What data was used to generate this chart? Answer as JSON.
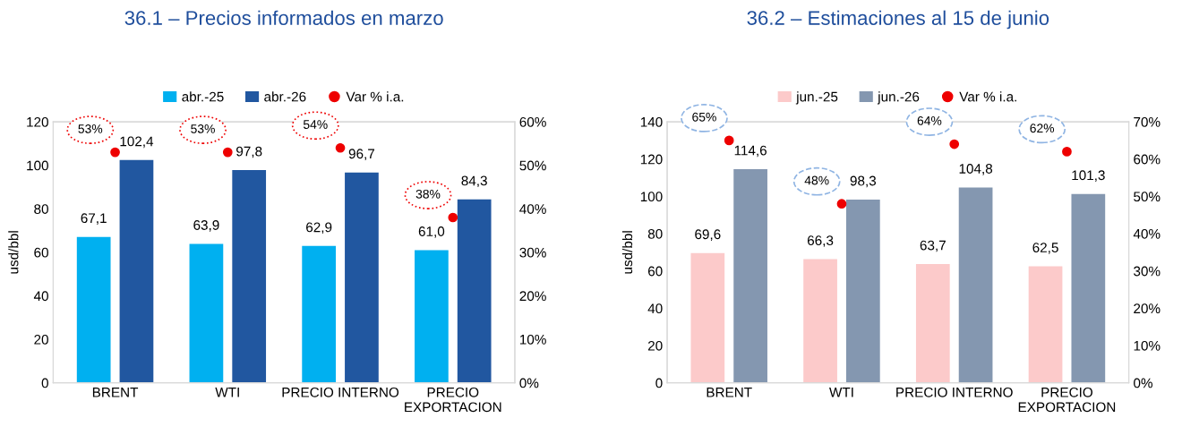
{
  "chart_data": [
    {
      "type": "bar",
      "title": "36.1 – Precios informados en marzo",
      "ylabel": "usd/bbl",
      "categories": [
        "BRENT",
        "WTI",
        "PRECIO INTERNO",
        "PRECIO\nEXPORTACION"
      ],
      "series": [
        {
          "name": "abr.-25",
          "color": "#00b0f0",
          "values": [
            67.1,
            63.9,
            62.9,
            61.0
          ],
          "value_labels": [
            "67,1",
            "63,9",
            "62,9",
            "61,0"
          ]
        },
        {
          "name": "abr.-26",
          "color": "#2157a0",
          "values": [
            102.4,
            97.8,
            96.7,
            84.3
          ],
          "value_labels": [
            "102,4",
            "97,8",
            "96,7",
            "84,3"
          ]
        },
        {
          "name": "Var % i.a.",
          "type": "scatter",
          "axis": "y2",
          "color": "#ee0000",
          "values": [
            53,
            53,
            54,
            38
          ],
          "value_labels": [
            "53%",
            "53%",
            "54%",
            "38%"
          ]
        }
      ],
      "ylim": [
        0,
        120
      ],
      "yticks": [
        0,
        20,
        40,
        60,
        80,
        100,
        120
      ],
      "y2lim": [
        0,
        60
      ],
      "y2ticks": [
        {
          "value": 0,
          "label": "0%"
        },
        {
          "value": 10,
          "label": "10%"
        },
        {
          "value": 20,
          "label": "20%"
        },
        {
          "value": 30,
          "label": "30%"
        },
        {
          "value": 40,
          "label": "40%"
        },
        {
          "value": 50,
          "label": "50%"
        },
        {
          "value": 60,
          "label": "60%"
        }
      ],
      "legend": "top",
      "grid": false,
      "marker": "circle"
    },
    {
      "type": "bar",
      "title": "36.2 – Estimaciones al 15 de junio",
      "ylabel": "usd/bbl",
      "categories": [
        "BRENT",
        "WTI",
        "PRECIO INTERNO",
        "PRECIO\nEXPORTACION"
      ],
      "series": [
        {
          "name": "jun.-25",
          "color": "#fccaca",
          "values": [
            69.6,
            66.3,
            63.7,
            62.5
          ],
          "value_labels": [
            "69,6",
            "66,3",
            "63,7",
            "62,5"
          ]
        },
        {
          "name": "jun.-26",
          "color": "#8497b0",
          "values": [
            114.6,
            98.3,
            104.8,
            101.3
          ],
          "value_labels": [
            "114,6",
            "98,3",
            "104,8",
            "101,3"
          ]
        },
        {
          "name": "Var % i.a.",
          "type": "scatter",
          "axis": "y2",
          "color": "#ee0000",
          "values": [
            65,
            48,
            64,
            62
          ],
          "value_labels": [
            "65%",
            "48%",
            "64%",
            "62%"
          ]
        }
      ],
      "ylim": [
        0,
        140
      ],
      "yticks": [
        0,
        20,
        40,
        60,
        80,
        100,
        120,
        140
      ],
      "y2lim": [
        0,
        70
      ],
      "y2ticks": [
        {
          "value": 0,
          "label": "0%"
        },
        {
          "value": 10,
          "label": "10%"
        },
        {
          "value": 20,
          "label": "20%"
        },
        {
          "value": 30,
          "label": "30%"
        },
        {
          "value": 40,
          "label": "40%"
        },
        {
          "value": 50,
          "label": "50%"
        },
        {
          "value": 60,
          "label": "60%"
        },
        {
          "value": 70,
          "label": "70%"
        }
      ],
      "legend": "top",
      "grid": false,
      "marker": "circle"
    }
  ]
}
